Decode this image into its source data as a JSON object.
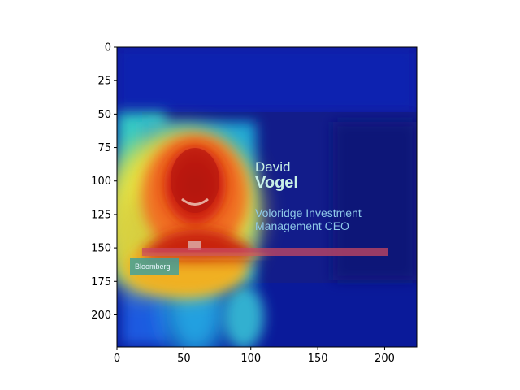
{
  "chart_data": {
    "type": "heatmap",
    "title": "",
    "xlabel": "",
    "ylabel": "",
    "xlim": [
      0,
      224
    ],
    "ylim": [
      224,
      0
    ],
    "x_ticks": [
      0,
      50,
      100,
      150,
      200
    ],
    "y_ticks": [
      0,
      25,
      50,
      75,
      100,
      125,
      150,
      175,
      200
    ],
    "colormap": "jet",
    "underlying_image_text": {
      "name_first": "David",
      "name_last": "Vogel",
      "title_line1": "Voloridge Investment",
      "title_line2": "Management CEO",
      "brand": "Bloomberg"
    }
  }
}
